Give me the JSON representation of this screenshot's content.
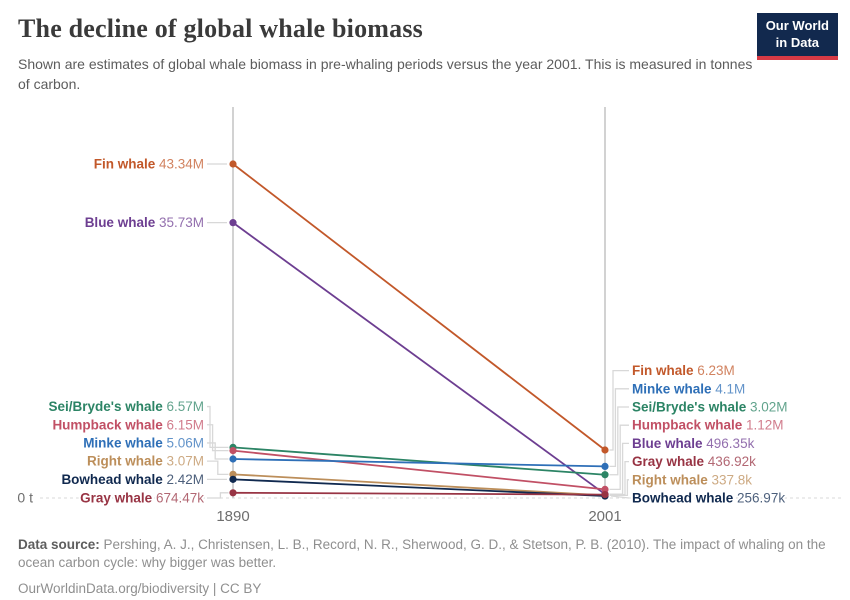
{
  "header": {
    "title": "The decline of global whale biomass",
    "subtitle": "Shown are estimates of global whale biomass in pre-whaling periods versus the year 2001. This is measured in tonnes of carbon.",
    "logo": {
      "line1": "Our World",
      "line2": "in Data",
      "bg_color": "#12294e",
      "accent_color": "#d73a45"
    }
  },
  "chart_data": {
    "type": "slope",
    "title": "The decline of global whale biomass",
    "unit": "tonnes of carbon",
    "x": [
      "1890",
      "2001"
    ],
    "y_zero_label": "0 t",
    "ylim": [
      0,
      45000000
    ],
    "grid": "zero-line-dashed",
    "series": [
      {
        "name": "Fin whale",
        "color": "#c2582a",
        "values": [
          43340000,
          6230000
        ],
        "labels": [
          "43.34M",
          "6.23M"
        ]
      },
      {
        "name": "Blue whale",
        "color": "#6d3e91",
        "values": [
          35730000,
          496350
        ],
        "labels": [
          "35.73M",
          "496.35k"
        ]
      },
      {
        "name": "Sei/Bryde's whale",
        "color": "#2c8465",
        "values": [
          6570000,
          3020000
        ],
        "labels": [
          "6.57M",
          "3.02M"
        ]
      },
      {
        "name": "Humpback whale",
        "color": "#c15065",
        "values": [
          6150000,
          1120000
        ],
        "labels": [
          "6.15M",
          "1.12M"
        ]
      },
      {
        "name": "Minke whale",
        "color": "#2e6fb7",
        "values": [
          5060000,
          4100000
        ],
        "labels": [
          "5.06M",
          "4.1M"
        ]
      },
      {
        "name": "Right whale",
        "color": "#bc8e5a",
        "values": [
          3070000,
          337800
        ],
        "labels": [
          "3.07M",
          "337.8k"
        ]
      },
      {
        "name": "Bowhead whale",
        "color": "#10294f",
        "values": [
          2420000,
          256970
        ],
        "labels": [
          "2.42M",
          "256.97k"
        ]
      },
      {
        "name": "Gray whale",
        "color": "#983444",
        "values": [
          674470,
          436920
        ],
        "labels": [
          "674.47k",
          "436.92k"
        ]
      }
    ],
    "axis_color": "#cbcbcb",
    "grid_color": "#d8d8d8",
    "tick_color": "#6e6e6e"
  },
  "footer": {
    "source_label": "Data source:",
    "source_text": "Pershing, A. J., Christensen, L. B., Record, N. R., Sherwood, G. D., & Stetson, P. B. (2010). The impact of whaling on the ocean carbon cycle: why bigger was better.",
    "link": "OurWorldinData.org/biodiversity | CC BY"
  }
}
